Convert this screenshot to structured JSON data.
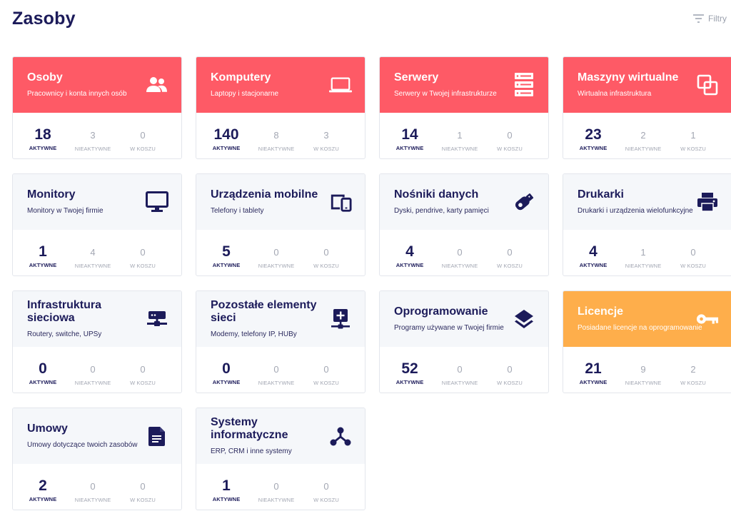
{
  "page": {
    "title": "Zasoby",
    "filter_label": "Filtry"
  },
  "stat_labels": {
    "active": "AKTYWNE",
    "inactive": "NIEAKTYWNE",
    "trash": "W KOSZU"
  },
  "cards": [
    {
      "title": "Osoby",
      "subtitle": "Pracownicy i konta innych osób",
      "icon": "people-icon",
      "color": "red",
      "active": "18",
      "inactive": "3",
      "trash": "0"
    },
    {
      "title": "Komputery",
      "subtitle": "Laptopy i stacjonarne",
      "icon": "laptop-icon",
      "color": "red",
      "active": "140",
      "inactive": "8",
      "trash": "3"
    },
    {
      "title": "Serwery",
      "subtitle": "Serwery w Twojej infrastrukturze",
      "icon": "server-icon",
      "color": "red",
      "active": "14",
      "inactive": "1",
      "trash": "0"
    },
    {
      "title": "Maszyny wirtualne",
      "subtitle": "Wirtualna infrastruktura",
      "icon": "virtual-machine-icon",
      "color": "red",
      "active": "23",
      "inactive": "2",
      "trash": "1"
    },
    {
      "title": "Monitory",
      "subtitle": "Monitory w Twojej firmie",
      "icon": "monitor-icon",
      "color": "gray",
      "active": "1",
      "inactive": "4",
      "trash": "0"
    },
    {
      "title": "Urządzenia mobilne",
      "subtitle": "Telefony i tablety",
      "icon": "mobile-devices-icon",
      "color": "gray",
      "active": "5",
      "inactive": "0",
      "trash": "0"
    },
    {
      "title": "Nośniki danych",
      "subtitle": "Dyski, pendrive, karty pamięci",
      "icon": "usb-drive-icon",
      "color": "gray",
      "active": "4",
      "inactive": "0",
      "trash": "0"
    },
    {
      "title": "Drukarki",
      "subtitle": "Drukarki i urządzenia wielofunkcyjne",
      "icon": "printer-icon",
      "color": "gray",
      "active": "4",
      "inactive": "1",
      "trash": "0"
    },
    {
      "title": "Infrastruktura sieciowa",
      "subtitle": "Routery, switche, UPSy",
      "icon": "network-icon",
      "color": "gray",
      "active": "0",
      "inactive": "0",
      "trash": "0"
    },
    {
      "title": "Pozostałe elementy sieci",
      "subtitle": "Modemy, telefony IP, HUBy",
      "icon": "network-add-icon",
      "color": "gray",
      "active": "0",
      "inactive": "0",
      "trash": "0"
    },
    {
      "title": "Oprogramowanie",
      "subtitle": "Programy używane w Twojej firmie",
      "icon": "layers-icon",
      "color": "gray",
      "active": "52",
      "inactive": "0",
      "trash": "0"
    },
    {
      "title": "Licencje",
      "subtitle": "Posiadane licencje na oprogramowanie",
      "icon": "key-icon",
      "color": "orange",
      "active": "21",
      "inactive": "9",
      "trash": "2"
    },
    {
      "title": "Umowy",
      "subtitle": "Umowy dotyczące twoich zasobów",
      "icon": "document-icon",
      "color": "gray",
      "active": "2",
      "inactive": "0",
      "trash": "0"
    },
    {
      "title": "Systemy informatyczne",
      "subtitle": "ERP, CRM i inne systemy",
      "icon": "system-hierarchy-icon",
      "color": "gray",
      "active": "1",
      "inactive": "0",
      "trash": "0"
    }
  ],
  "colors": {
    "navy": "#1c1b5a",
    "red": "#fe5a66",
    "orange": "#feae4b",
    "muted": "#a3a7b3",
    "card_head_gray": "#f5f7fa"
  }
}
